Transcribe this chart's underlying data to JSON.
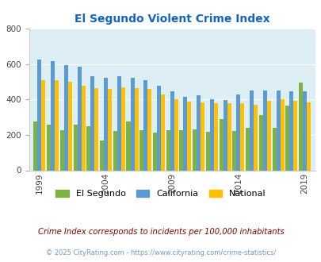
{
  "title": "El Segundo Violent Crime Index",
  "years": [
    1999,
    2000,
    2001,
    2002,
    2003,
    2004,
    2005,
    2006,
    2007,
    2008,
    2009,
    2010,
    2011,
    2012,
    2013,
    2014,
    2015,
    2016,
    2017,
    2018,
    2019,
    2020
  ],
  "el_segundo": [
    275,
    260,
    225,
    260,
    248,
    170,
    220,
    275,
    225,
    213,
    228,
    225,
    230,
    218,
    288,
    220,
    238,
    312,
    240,
    365,
    497,
    0
  ],
  "california": [
    625,
    618,
    595,
    585,
    530,
    525,
    530,
    525,
    510,
    480,
    445,
    415,
    422,
    400,
    397,
    430,
    450,
    450,
    450,
    447,
    447,
    0
  ],
  "national": [
    510,
    510,
    500,
    477,
    465,
    462,
    470,
    465,
    458,
    430,
    402,
    390,
    385,
    380,
    380,
    380,
    372,
    395,
    400,
    395,
    383,
    0
  ],
  "color_el_segundo": "#7cb342",
  "color_california": "#5b9bd5",
  "color_national": "#ffc000",
  "color_title": "#1565c0",
  "color_bg_chart": "#ddeef5",
  "color_subtitle": "#8b0000",
  "color_footnote_link": "#7799bb",
  "ylim": [
    0,
    800
  ],
  "yticks": [
    0,
    200,
    400,
    600,
    800
  ],
  "xlabel_years": [
    1999,
    2004,
    2009,
    2014,
    2019
  ],
  "subtitle": "Crime Index corresponds to incidents per 100,000 inhabitants",
  "footnote": "© 2025 CityRating.com - https://www.cityrating.com/crime-statistics/"
}
